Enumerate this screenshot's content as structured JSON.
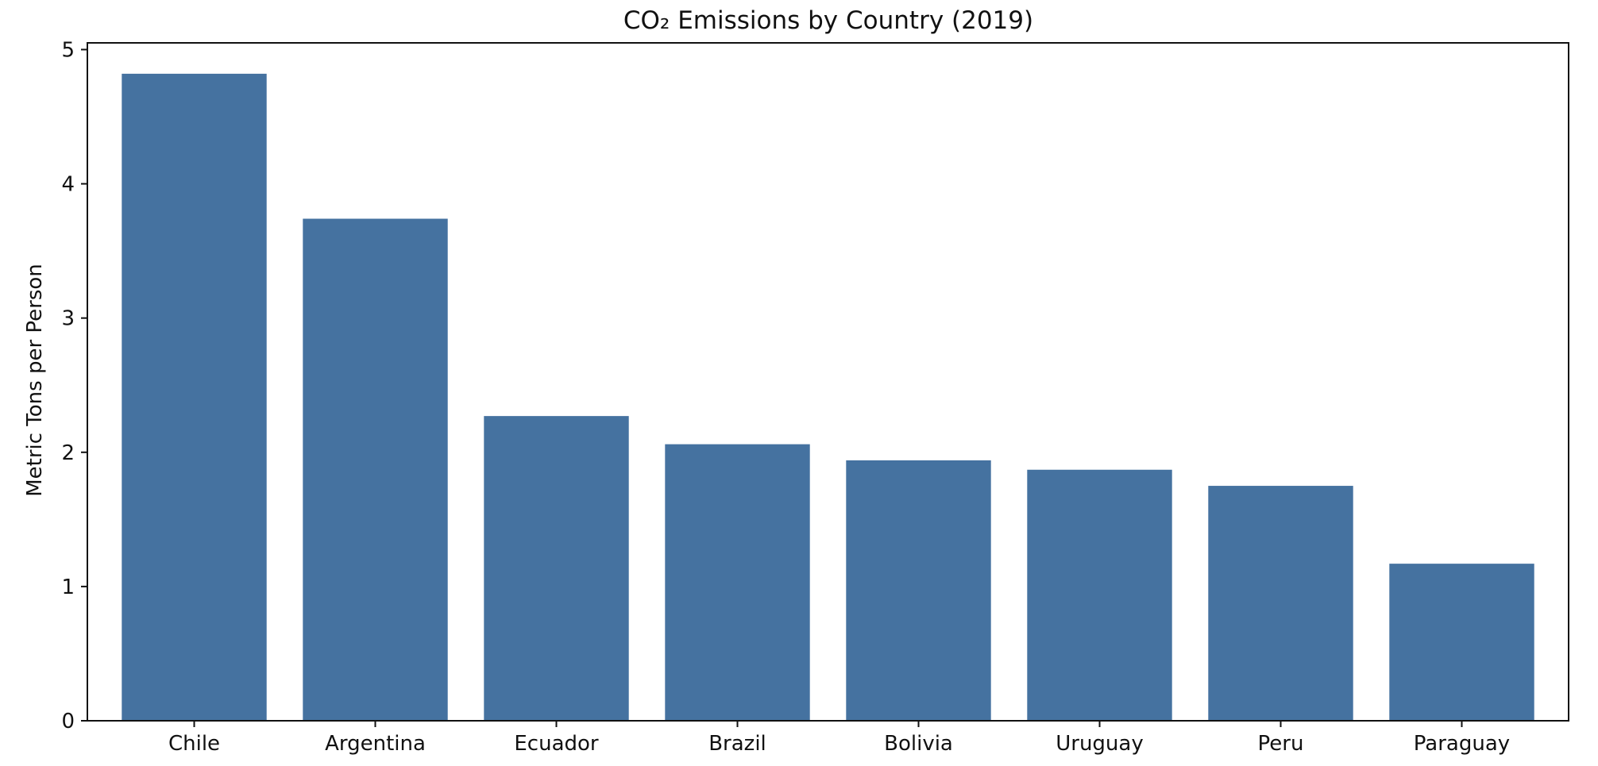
{
  "chart_data": {
    "type": "bar",
    "title": "CO₂ Emissions by Country (2019)",
    "xlabel": "",
    "ylabel": "Metric Tons per Person",
    "categories": [
      "Chile",
      "Argentina",
      "Ecuador",
      "Brazil",
      "Bolivia",
      "Uruguay",
      "Peru",
      "Paraguay"
    ],
    "values": [
      4.82,
      3.74,
      2.27,
      2.06,
      1.94,
      1.87,
      1.75,
      1.17
    ],
    "ylim": [
      0,
      5.05
    ],
    "yticks": [
      0,
      1,
      2,
      3,
      4,
      5
    ],
    "grid": false,
    "legend": "none",
    "bar_color": "#4572a0"
  }
}
